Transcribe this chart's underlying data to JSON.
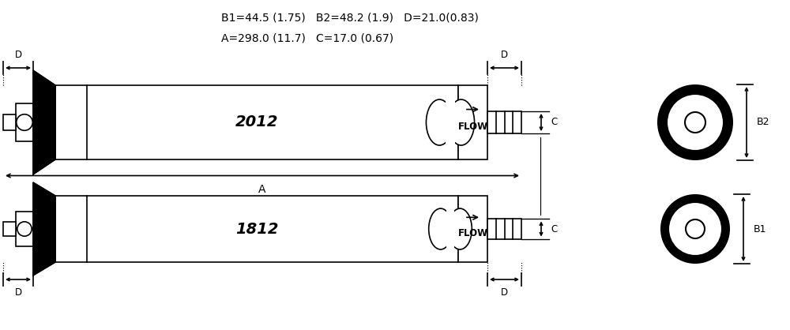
{
  "bg_color": "#ffffff",
  "line_color": "#000000",
  "fig_width": 10.0,
  "fig_height": 4.18,
  "label_1812": "1812",
  "label_2012": "2012",
  "label_flow": "FLOW",
  "label_A": "A",
  "label_B1": "B1",
  "label_B2": "B2",
  "label_C": "C",
  "label_D": "D",
  "dim_line1": "A=298.0 (11.7)   C=17.0 (0.67)",
  "dim_line2": "B1=44.5 (1.75)   B2=48.2 (1.9)   D=21.0(0.83)"
}
